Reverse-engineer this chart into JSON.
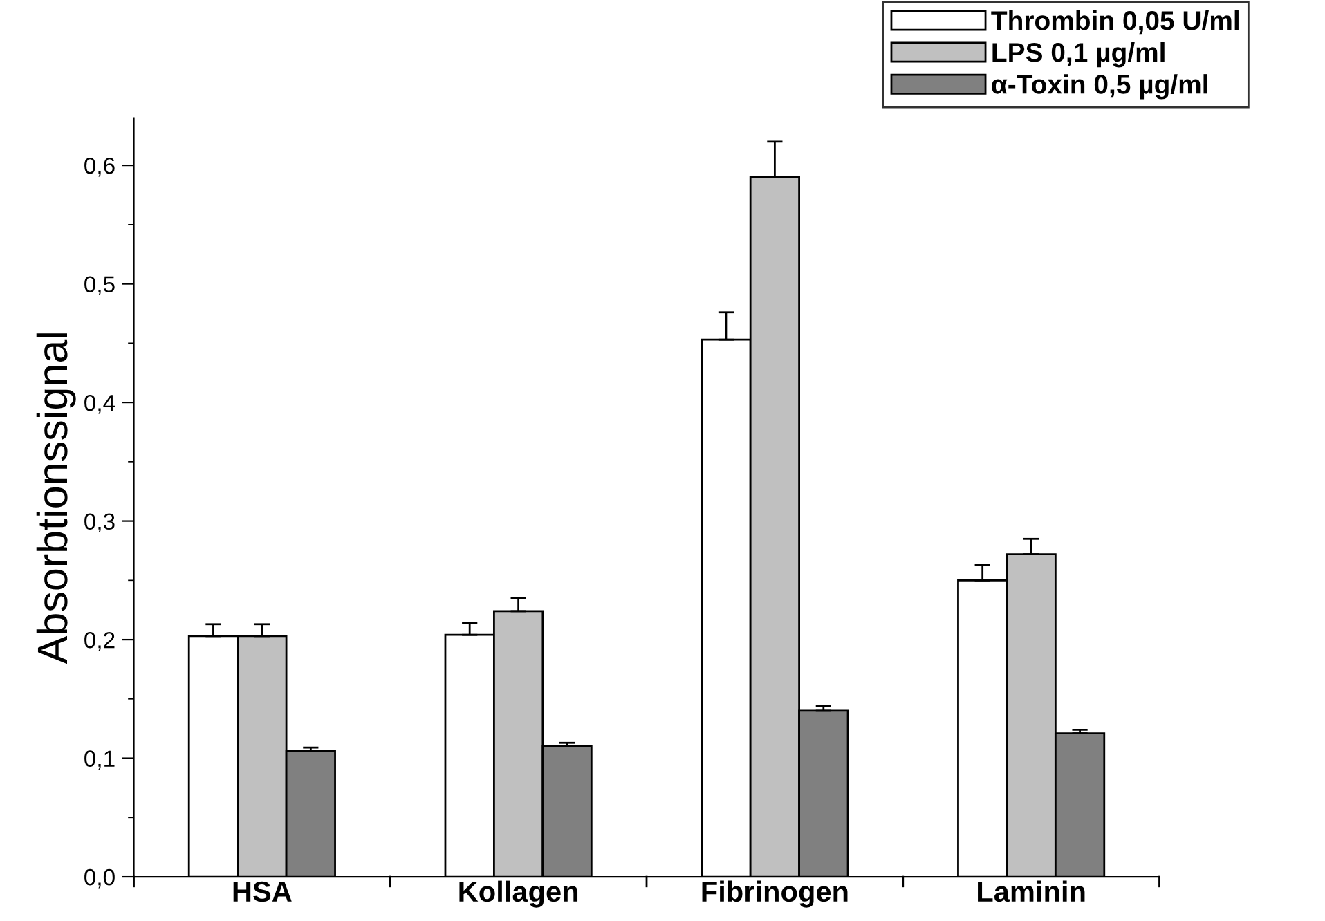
{
  "chart_data": {
    "type": "bar",
    "ylabel": "Absorbtionssignal",
    "categories": [
      "HSA",
      "Kollagen",
      "Fibrinogen",
      "Laminin"
    ],
    "series": [
      {
        "name": "Thrombin 0,05 U/ml",
        "color": "#ffffff",
        "values": [
          0.203,
          0.204,
          0.453,
          0.25
        ],
        "errors": [
          [
            0.203,
            0.213
          ],
          [
            0.204,
            0.214
          ],
          [
            0.453,
            0.476
          ],
          [
            0.25,
            0.263
          ]
        ]
      },
      {
        "name": "LPS 0,1 µg/ml",
        "color": "#c0c0c0",
        "values": [
          0.203,
          0.224,
          0.59,
          0.272
        ],
        "errors": [
          [
            0.203,
            0.213
          ],
          [
            0.224,
            0.235
          ],
          [
            0.59,
            0.62
          ],
          [
            0.272,
            0.285
          ]
        ]
      },
      {
        "name": "α-Toxin 0,5 µg/ml",
        "color": "#808080",
        "values": [
          0.106,
          0.11,
          0.14,
          0.121
        ],
        "errors": [
          [
            0.106,
            0.109
          ],
          [
            0.11,
            0.113
          ],
          [
            0.14,
            0.144
          ],
          [
            0.121,
            0.124
          ]
        ]
      }
    ],
    "ylim": [
      0,
      0.64
    ],
    "yticks": [
      {
        "value": 0,
        "label": "0,0"
      },
      {
        "value": 0.05,
        "label": null
      },
      {
        "value": 0.1,
        "label": "0,1"
      },
      {
        "value": 0.15,
        "label": null
      },
      {
        "value": 0.2,
        "label": "0,2"
      },
      {
        "value": 0.25,
        "label": null
      },
      {
        "value": 0.3,
        "label": "0,3"
      },
      {
        "value": 0.35,
        "label": null
      },
      {
        "value": 0.4,
        "label": "0,4"
      },
      {
        "value": 0.45,
        "label": null
      },
      {
        "value": 0.5,
        "label": "0,5"
      },
      {
        "value": 0.55,
        "label": null
      },
      {
        "value": 0.6,
        "label": "0,6"
      }
    ],
    "grid": false,
    "legend": "top right"
  }
}
